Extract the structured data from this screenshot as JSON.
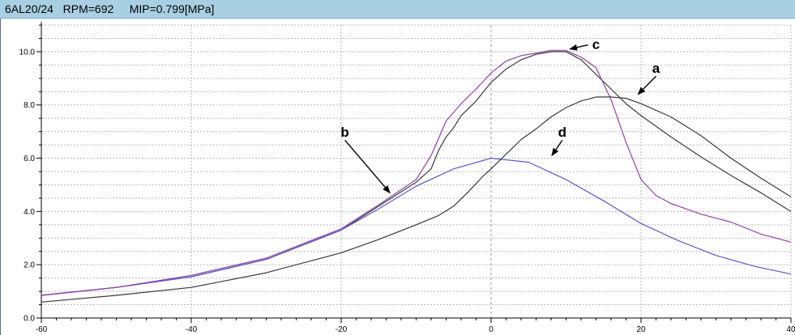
{
  "window": {
    "title_model": "6AL20/24",
    "title_rpm": "RPM=692",
    "title_mip": "MIP=0.799[MPa]"
  },
  "colors": {
    "titlebar": "#a9cfe2",
    "curve_a": "#3a3a3a",
    "curve_b": "#5a5ac8",
    "curve_c": "#8e44a8",
    "curve_d": "#3a3a3a",
    "grid": "#b9b9b9",
    "crosshair": "#9a9a9a"
  },
  "chart_data": {
    "type": "line",
    "title": "",
    "xlabel": "",
    "ylabel": "",
    "xlim": [
      -60,
      40
    ],
    "ylim": [
      0,
      11
    ],
    "grid": true,
    "x_ticks": [
      -60,
      -40,
      -20,
      0,
      20,
      40
    ],
    "y_ticks": [
      0.0,
      2.0,
      4.0,
      6.0,
      8.0,
      10.0
    ],
    "x_tick_labels": [
      "-60",
      "-40",
      "-20",
      "0",
      "20",
      "40"
    ],
    "y_tick_labels": [
      "0.0",
      "2.0",
      "4.0",
      "6.0",
      "8.0",
      "10.0"
    ],
    "series": [
      {
        "label": "a",
        "color": "#3a3a3a",
        "x": [
          -60,
          -50,
          -40,
          -30,
          -20,
          -15,
          -10,
          -8,
          -7,
          -6,
          -5,
          -4,
          -2,
          0,
          2,
          4,
          6,
          8,
          10,
          12,
          14,
          16,
          18,
          20,
          24,
          28,
          32,
          36,
          40
        ],
        "y": [
          0.85,
          1.15,
          1.55,
          2.2,
          3.3,
          4.2,
          5.1,
          5.6,
          6.3,
          6.8,
          7.15,
          7.6,
          8.15,
          8.85,
          9.35,
          9.7,
          9.9,
          10.0,
          10.0,
          9.7,
          9.15,
          8.6,
          8.05,
          7.6,
          6.8,
          6.05,
          5.35,
          4.7,
          4.0
        ]
      },
      {
        "label": "b",
        "color": "#5a5ac8",
        "x": [
          -60,
          -50,
          -40,
          -30,
          -20,
          -15,
          -10,
          -5,
          0,
          5,
          10,
          15,
          20,
          25,
          30,
          35,
          40
        ],
        "y": [
          0.85,
          1.15,
          1.55,
          2.2,
          3.3,
          4.1,
          4.95,
          5.6,
          6.0,
          5.85,
          5.2,
          4.4,
          3.55,
          2.9,
          2.35,
          1.95,
          1.65
        ]
      },
      {
        "label": "c",
        "color": "#8e44a8",
        "x": [
          -60,
          -50,
          -40,
          -30,
          -20,
          -15,
          -10,
          -8,
          -6,
          -4,
          -2,
          0,
          2,
          4,
          6,
          8,
          10,
          12,
          14,
          16,
          18,
          20,
          22,
          24,
          28,
          32,
          36,
          40
        ],
        "y": [
          0.85,
          1.15,
          1.6,
          2.25,
          3.35,
          4.25,
          5.2,
          6.1,
          7.4,
          8.05,
          8.6,
          9.2,
          9.65,
          9.85,
          9.95,
          10.05,
          10.05,
          9.8,
          9.4,
          8.2,
          6.6,
          5.2,
          4.6,
          4.3,
          3.9,
          3.6,
          3.15,
          2.85
        ]
      },
      {
        "label": "d",
        "color": "#3a3a3a",
        "x": [
          -60,
          -50,
          -40,
          -30,
          -20,
          -15,
          -10,
          -7,
          -5,
          -3,
          -1,
          0,
          2,
          4,
          6,
          8,
          10,
          12,
          14,
          16,
          18,
          20,
          24,
          28,
          32,
          36,
          40
        ],
        "y": [
          0.6,
          0.85,
          1.15,
          1.7,
          2.45,
          2.95,
          3.5,
          3.85,
          4.2,
          4.75,
          5.35,
          5.6,
          6.15,
          6.7,
          7.1,
          7.55,
          7.9,
          8.15,
          8.3,
          8.3,
          8.25,
          8.05,
          7.55,
          6.85,
          6.0,
          5.25,
          4.55
        ]
      }
    ],
    "annotations": [
      {
        "label": "a",
        "label_pos": [
          22,
          9.2
        ],
        "arrow_to": [
          19.6,
          8.4
        ]
      },
      {
        "label": "b",
        "label_pos": [
          -19.5,
          6.8
        ],
        "arrow_to": [
          -13.5,
          4.7
        ]
      },
      {
        "label": "c",
        "label_pos": [
          14,
          10.1
        ],
        "arrow_to": [
          10.5,
          10.1
        ]
      },
      {
        "label": "d",
        "label_pos": [
          9.5,
          6.8
        ],
        "arrow_to": [
          8.1,
          6.1
        ]
      }
    ]
  }
}
